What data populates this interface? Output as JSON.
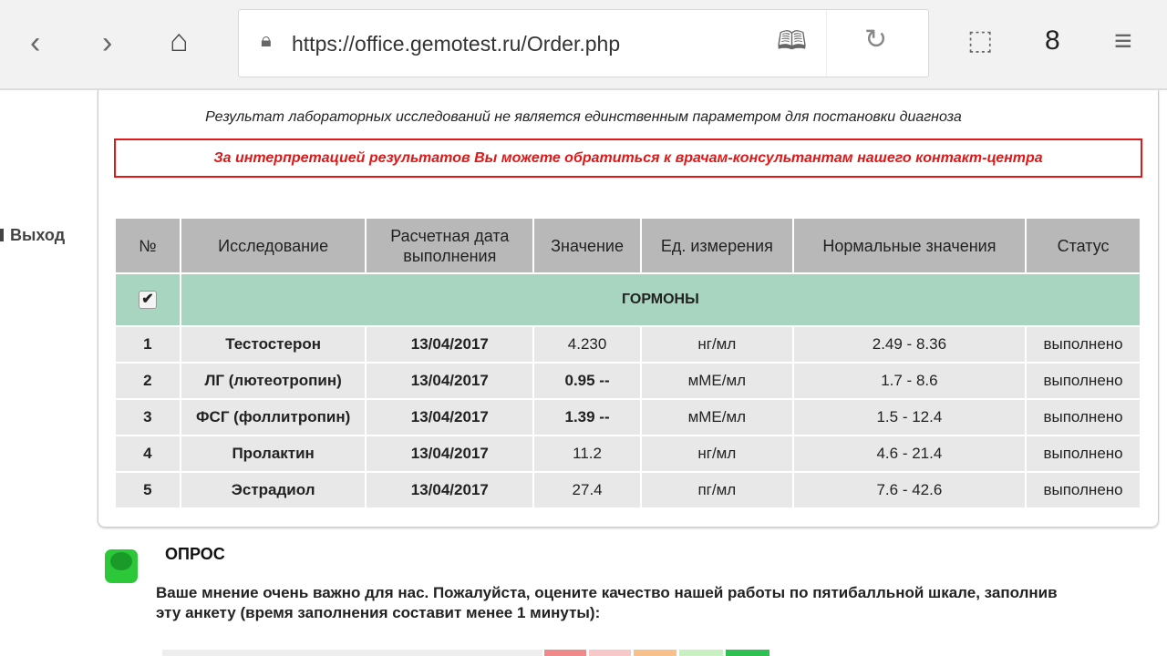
{
  "browser": {
    "url": "https://office.gemotest.ru/Order.php",
    "tab_count": "8"
  },
  "sidebar": {
    "exit_label": "Выход"
  },
  "notice": {
    "disclaimer": "Результат лабораторных исследований не является единственным параметром для постановки диагноза",
    "alert": "За интерпретацией результатов Вы можете обратиться к врачам-консультантам нашего контакт-центра",
    "alert_color": "#e01818"
  },
  "table": {
    "headers": [
      "№",
      "Исследование",
      "Расчетная дата выполнения",
      "Значение",
      "Ед. измерения",
      "Нормальные значения",
      "Статус"
    ],
    "group": {
      "name": "ГОРМОНЫ",
      "checked": true
    },
    "rows": [
      {
        "n": "1",
        "test": "Тестостерон",
        "date": "13/04/2017",
        "value": "4.230",
        "unit": "нг/мл",
        "norm": "2.49 - 8.36",
        "status": "выполнено"
      },
      {
        "n": "2",
        "test": "ЛГ (лютеотропин)",
        "date": "13/04/2017",
        "value": "0.95 --",
        "unit": "мМЕ/мл",
        "norm": "1.7 - 8.6",
        "status": "выполнено"
      },
      {
        "n": "3",
        "test": "ФСГ (фоллитропин)",
        "date": "13/04/2017",
        "value": "1.39 --",
        "unit": "мМЕ/мл",
        "norm": "1.5 - 12.4",
        "status": "выполнено"
      },
      {
        "n": "4",
        "test": "Пролактин",
        "date": "13/04/2017",
        "value": "11.2",
        "unit": "нг/мл",
        "norm": "4.6 - 21.4",
        "status": "выполнено"
      },
      {
        "n": "5",
        "test": "Эстрадиол",
        "date": "13/04/2017",
        "value": "27.4",
        "unit": "пг/мл",
        "norm": "7.6 - 42.6",
        "status": "выполнено"
      }
    ]
  },
  "poll": {
    "title": "ОПРОС",
    "text": "Ваше мнение очень важно для нас. Пожалуйста, оцените качество нашей работы по пятибалльной шкале, заполнив эту анкету (время заполнения составит менее 1 минуты):",
    "rating_colors": [
      "#f08a8a",
      "#f8c8c8",
      "#f8c08a",
      "#c8f0c0",
      "#2ec050"
    ]
  }
}
